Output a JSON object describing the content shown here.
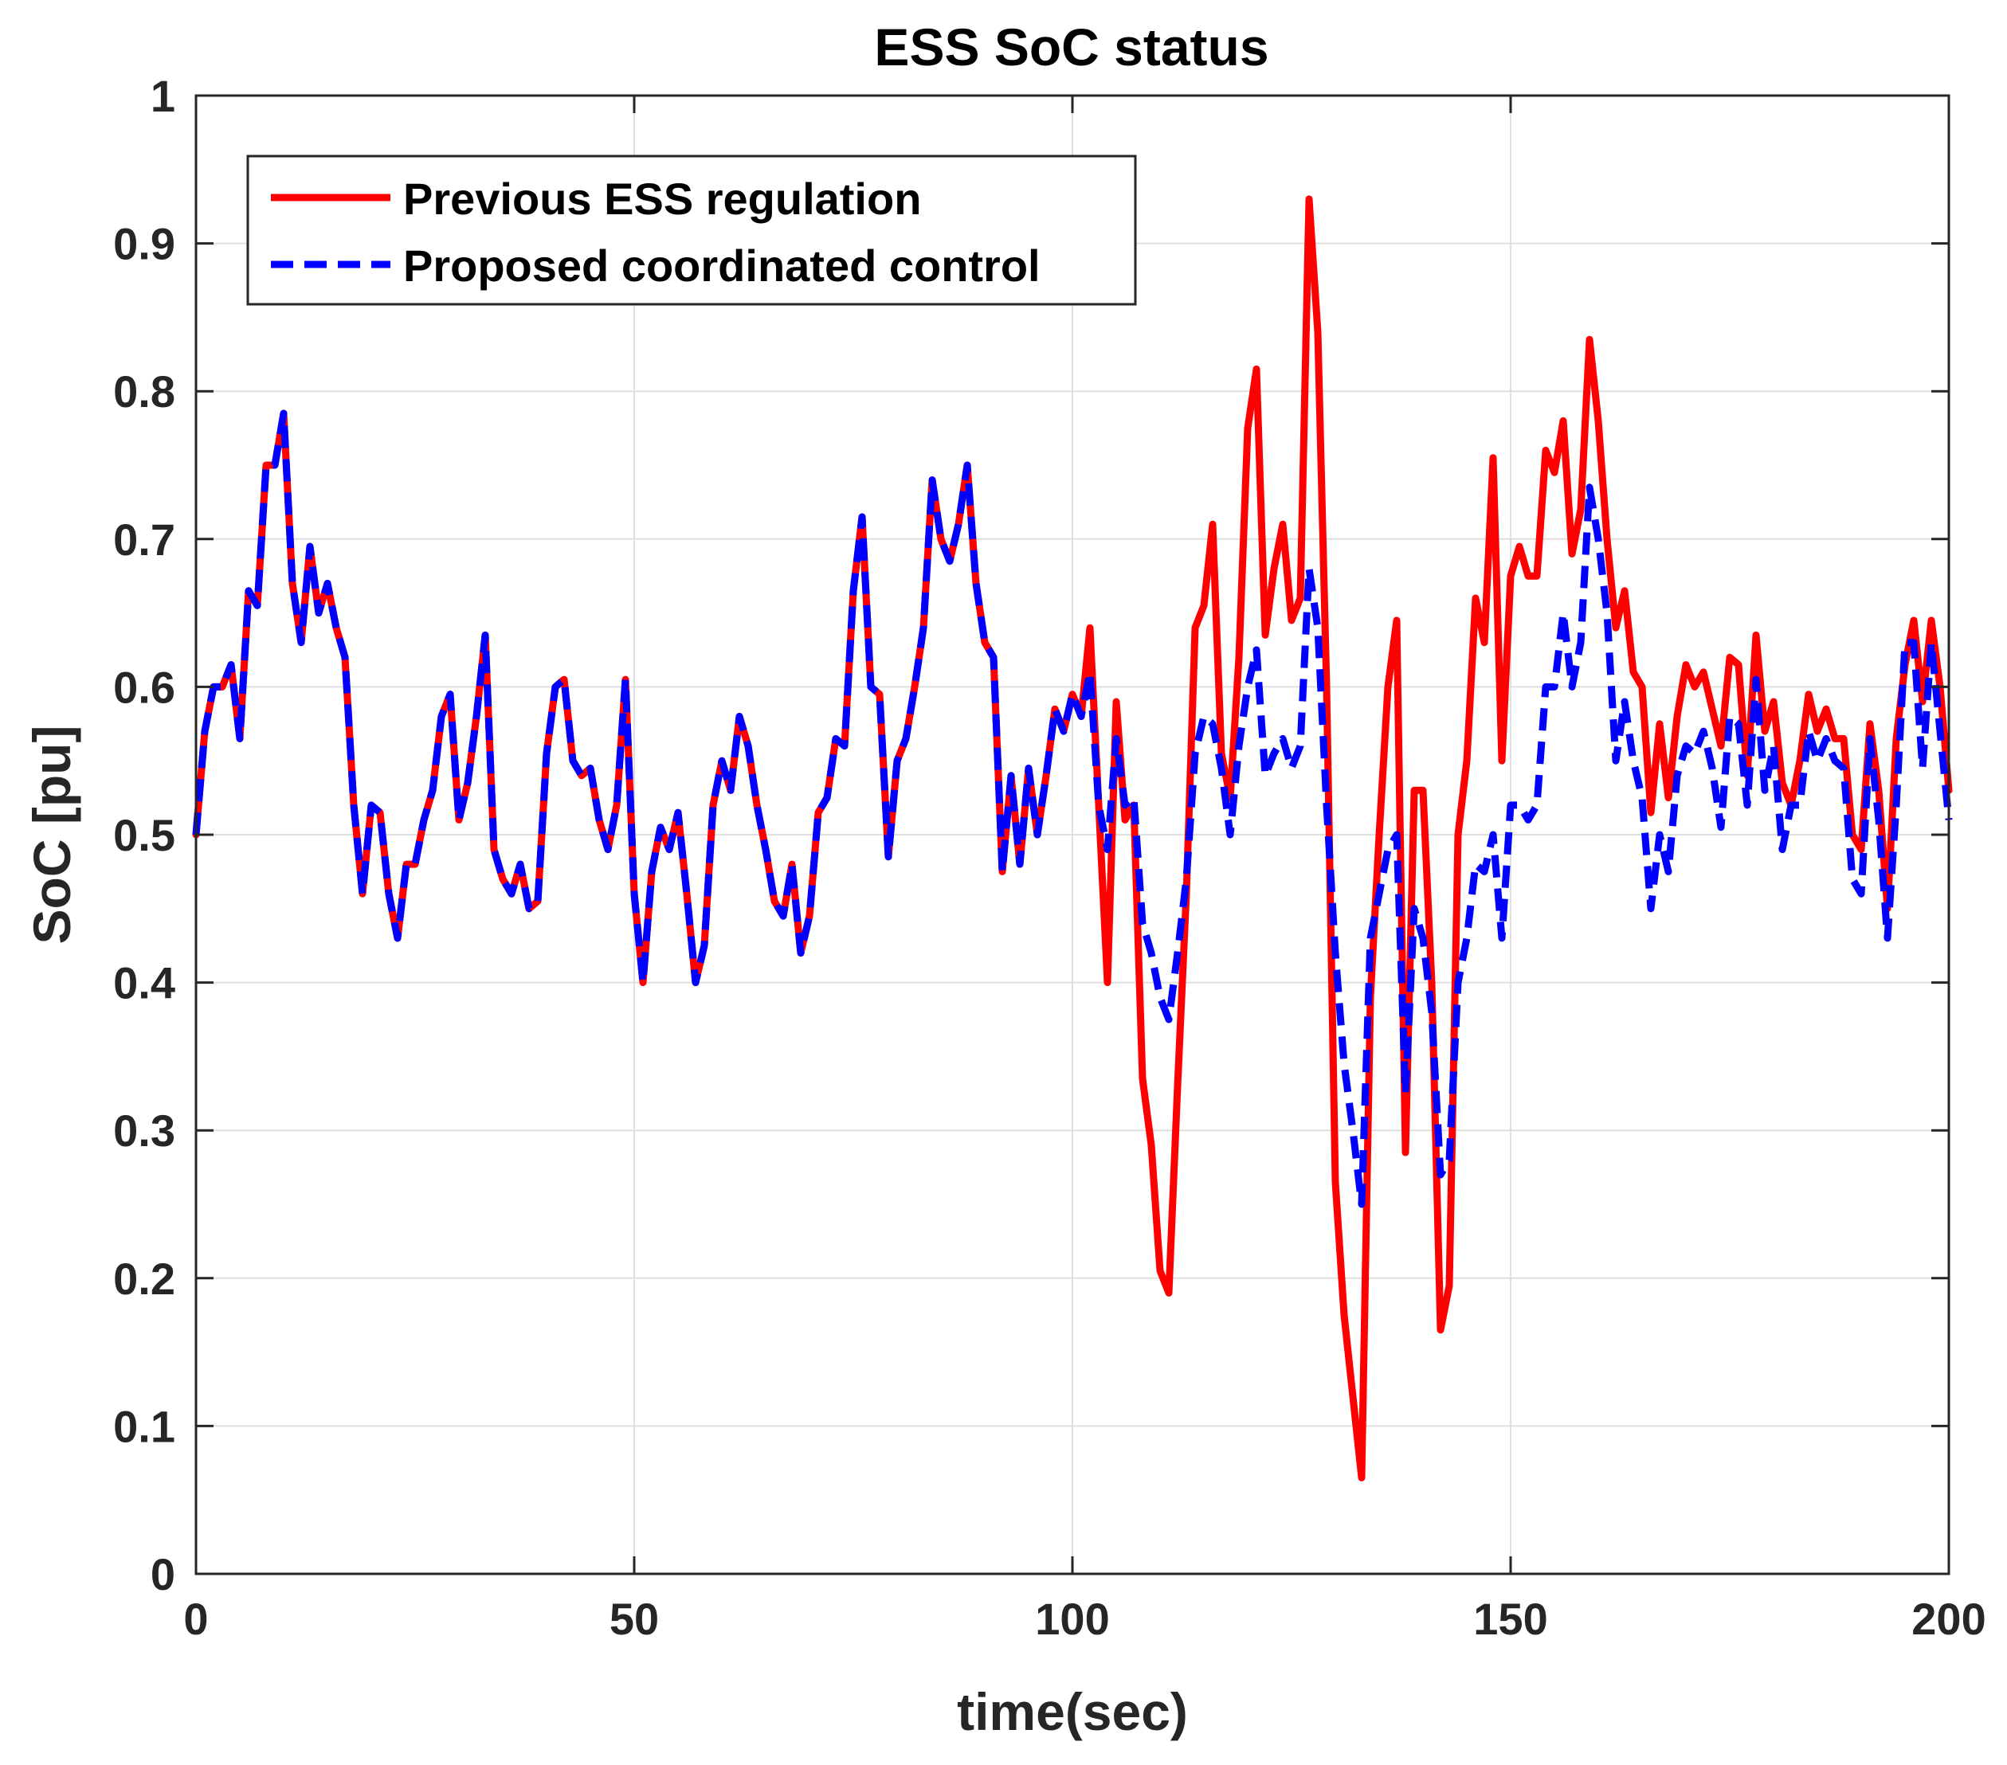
{
  "chart_data": {
    "type": "line",
    "title": "ESS SoC status",
    "xlabel": "time(sec)",
    "ylabel": "SoC [pu]",
    "xlim": [
      0,
      200
    ],
    "ylim": [
      0,
      1
    ],
    "grid": true,
    "legend_position": "top-left",
    "x_ticks": [
      0,
      50,
      100,
      150,
      200
    ],
    "x_tick_labels": [
      "0",
      "50",
      "100",
      "150",
      "200"
    ],
    "y_ticks": [
      0,
      0.1,
      0.2,
      0.3,
      0.4,
      0.5,
      0.6,
      0.7,
      0.8,
      0.9,
      1
    ],
    "y_tick_labels": [
      "0",
      "0.1",
      "0.2",
      "0.3",
      "0.4",
      "0.5",
      "0.6",
      "0.7",
      "0.8",
      "0.9",
      "1"
    ],
    "series": [
      {
        "name": "Previous ESS regulation",
        "color": "#ff0000",
        "style": "solid",
        "x": [
          0,
          1,
          2,
          3,
          4,
          5,
          6,
          7,
          8,
          9,
          10,
          11,
          12,
          13,
          14,
          15,
          16,
          17,
          18,
          19,
          20,
          21,
          22,
          23,
          24,
          25,
          26,
          27,
          28,
          29,
          30,
          31,
          32,
          33,
          34,
          35,
          36,
          37,
          38,
          39,
          40,
          41,
          42,
          43,
          44,
          45,
          46,
          47,
          48,
          49,
          50,
          51,
          52,
          53,
          54,
          55,
          56,
          57,
          58,
          59,
          60,
          61,
          62,
          63,
          64,
          65,
          66,
          67,
          68,
          69,
          70,
          71,
          72,
          73,
          74,
          75,
          76,
          77,
          78,
          79,
          80,
          81,
          82,
          83,
          84,
          85,
          86,
          87,
          88,
          89,
          90,
          91,
          92,
          93,
          94,
          95,
          96,
          97,
          98,
          99,
          100,
          101,
          102,
          103,
          104,
          105,
          106,
          107,
          108,
          109,
          110,
          111,
          112,
          113,
          114,
          115,
          116,
          117,
          118,
          119,
          120,
          121,
          122,
          123,
          124,
          125,
          126,
          127,
          128,
          129,
          130,
          131,
          132,
          133,
          134,
          135,
          136,
          137,
          138,
          139,
          140,
          141,
          142,
          143,
          144,
          145,
          146,
          147,
          148,
          149,
          150,
          151,
          152,
          153,
          154,
          155,
          156,
          157,
          158,
          159,
          160,
          161,
          162,
          163,
          164,
          165,
          166,
          167,
          168,
          169,
          170,
          171,
          172,
          173,
          174,
          175,
          176,
          177,
          178,
          179,
          180,
          181,
          182,
          183,
          184,
          185,
          186,
          187,
          188,
          189,
          190,
          191,
          192,
          193,
          194,
          195,
          196,
          197,
          198,
          199,
          200
        ],
        "y": [
          0.5,
          0.57,
          0.6,
          0.6,
          0.615,
          0.565,
          0.665,
          0.655,
          0.75,
          0.75,
          0.785,
          0.67,
          0.63,
          0.695,
          0.65,
          0.67,
          0.64,
          0.62,
          0.52,
          0.46,
          0.52,
          0.515,
          0.46,
          0.43,
          0.48,
          0.48,
          0.51,
          0.53,
          0.58,
          0.595,
          0.51,
          0.535,
          0.58,
          0.635,
          0.49,
          0.47,
          0.46,
          0.48,
          0.45,
          0.455,
          0.555,
          0.6,
          0.605,
          0.55,
          0.54,
          0.545,
          0.51,
          0.49,
          0.52,
          0.605,
          0.46,
          0.4,
          0.475,
          0.505,
          0.49,
          0.515,
          0.46,
          0.4,
          0.425,
          0.52,
          0.55,
          0.53,
          0.58,
          0.56,
          0.52,
          0.49,
          0.455,
          0.445,
          0.48,
          0.42,
          0.445,
          0.515,
          0.525,
          0.565,
          0.56,
          0.665,
          0.715,
          0.6,
          0.595,
          0.485,
          0.55,
          0.565,
          0.6,
          0.64,
          0.74,
          0.7,
          0.685,
          0.71,
          0.75,
          0.67,
          0.63,
          0.62,
          0.475,
          0.54,
          0.48,
          0.545,
          0.5,
          0.54,
          0.585,
          0.57,
          0.595,
          0.58,
          0.64,
          0.52,
          0.4,
          0.59,
          0.51,
          0.52,
          0.335,
          0.29,
          0.205,
          0.19,
          0.33,
          0.46,
          0.64,
          0.655,
          0.71,
          0.555,
          0.525,
          0.62,
          0.775,
          0.815,
          0.635,
          0.68,
          0.71,
          0.645,
          0.66,
          0.93,
          0.84,
          0.6,
          0.265,
          0.175,
          0.12,
          0.065,
          0.39,
          0.5,
          0.6,
          0.645,
          0.285,
          0.53,
          0.53,
          0.4,
          0.165,
          0.195,
          0.5,
          0.55,
          0.66,
          0.63,
          0.755,
          0.55,
          0.675,
          0.695,
          0.675,
          0.675,
          0.76,
          0.745,
          0.78,
          0.69,
          0.72,
          0.835,
          0.78,
          0.7,
          0.64,
          0.665,
          0.61,
          0.6,
          0.515,
          0.575,
          0.525,
          0.58,
          0.615,
          0.6,
          0.61,
          0.585,
          0.56,
          0.62,
          0.615,
          0.54,
          0.635,
          0.57,
          0.59,
          0.535,
          0.52,
          0.55,
          0.595,
          0.57,
          0.585,
          0.565,
          0.565,
          0.5,
          0.49,
          0.575,
          0.53,
          0.45,
          0.565,
          0.615,
          0.645,
          0.59,
          0.645,
          0.6,
          0.53
        ]
      },
      {
        "name": "Proposed coordinated control",
        "color": "#0000ff",
        "style": "dashed",
        "x": [
          0,
          1,
          2,
          3,
          4,
          5,
          6,
          7,
          8,
          9,
          10,
          11,
          12,
          13,
          14,
          15,
          16,
          17,
          18,
          19,
          20,
          21,
          22,
          23,
          24,
          25,
          26,
          27,
          28,
          29,
          30,
          31,
          32,
          33,
          34,
          35,
          36,
          37,
          38,
          39,
          40,
          41,
          42,
          43,
          44,
          45,
          46,
          47,
          48,
          49,
          50,
          51,
          52,
          53,
          54,
          55,
          56,
          57,
          58,
          59,
          60,
          61,
          62,
          63,
          64,
          65,
          66,
          67,
          68,
          69,
          70,
          71,
          72,
          73,
          74,
          75,
          76,
          77,
          78,
          79,
          80,
          81,
          82,
          83,
          84,
          85,
          86,
          87,
          88,
          89,
          90,
          91,
          92,
          93,
          94,
          95,
          96,
          97,
          98,
          99,
          100,
          101,
          102,
          103,
          104,
          105,
          106,
          107,
          108,
          109,
          110,
          111,
          112,
          113,
          114,
          115,
          116,
          117,
          118,
          119,
          120,
          121,
          122,
          123,
          124,
          125,
          126,
          127,
          128,
          129,
          130,
          131,
          132,
          133,
          134,
          135,
          136,
          137,
          138,
          139,
          140,
          141,
          142,
          143,
          144,
          145,
          146,
          147,
          148,
          149,
          150,
          151,
          152,
          153,
          154,
          155,
          156,
          157,
          158,
          159,
          160,
          161,
          162,
          163,
          164,
          165,
          166,
          167,
          168,
          169,
          170,
          171,
          172,
          173,
          174,
          175,
          176,
          177,
          178,
          179,
          180,
          181,
          182,
          183,
          184,
          185,
          186,
          187,
          188,
          189,
          190,
          191,
          192,
          193,
          194,
          195,
          196,
          197,
          198,
          199,
          200
        ],
        "y": [
          0.5,
          0.57,
          0.6,
          0.6,
          0.615,
          0.565,
          0.665,
          0.655,
          0.75,
          0.75,
          0.785,
          0.67,
          0.63,
          0.695,
          0.65,
          0.67,
          0.64,
          0.62,
          0.52,
          0.46,
          0.52,
          0.515,
          0.46,
          0.43,
          0.48,
          0.48,
          0.51,
          0.53,
          0.58,
          0.595,
          0.51,
          0.535,
          0.58,
          0.635,
          0.49,
          0.47,
          0.46,
          0.48,
          0.45,
          0.455,
          0.555,
          0.6,
          0.605,
          0.55,
          0.54,
          0.545,
          0.51,
          0.49,
          0.52,
          0.605,
          0.46,
          0.4,
          0.475,
          0.505,
          0.49,
          0.515,
          0.46,
          0.4,
          0.425,
          0.52,
          0.55,
          0.53,
          0.58,
          0.56,
          0.52,
          0.49,
          0.455,
          0.445,
          0.48,
          0.42,
          0.445,
          0.515,
          0.525,
          0.565,
          0.56,
          0.665,
          0.715,
          0.6,
          0.595,
          0.485,
          0.55,
          0.565,
          0.6,
          0.64,
          0.74,
          0.7,
          0.685,
          0.71,
          0.75,
          0.67,
          0.63,
          0.62,
          0.475,
          0.54,
          0.48,
          0.545,
          0.5,
          0.54,
          0.585,
          0.57,
          0.595,
          0.58,
          0.61,
          0.52,
          0.49,
          0.565,
          0.52,
          0.525,
          0.44,
          0.42,
          0.39,
          0.375,
          0.42,
          0.47,
          0.555,
          0.58,
          0.575,
          0.545,
          0.5,
          0.56,
          0.6,
          0.625,
          0.54,
          0.555,
          0.565,
          0.545,
          0.56,
          0.68,
          0.64,
          0.52,
          0.42,
          0.345,
          0.3,
          0.25,
          0.43,
          0.46,
          0.49,
          0.5,
          0.325,
          0.45,
          0.43,
          0.38,
          0.27,
          0.28,
          0.4,
          0.43,
          0.48,
          0.475,
          0.5,
          0.43,
          0.52,
          0.52,
          0.51,
          0.52,
          0.6,
          0.6,
          0.65,
          0.6,
          0.63,
          0.735,
          0.7,
          0.65,
          0.55,
          0.59,
          0.55,
          0.525,
          0.45,
          0.5,
          0.475,
          0.54,
          0.56,
          0.555,
          0.57,
          0.545,
          0.505,
          0.58,
          0.575,
          0.52,
          0.605,
          0.53,
          0.56,
          0.49,
          0.52,
          0.52,
          0.57,
          0.55,
          0.565,
          0.55,
          0.545,
          0.47,
          0.46,
          0.565,
          0.51,
          0.43,
          0.52,
          0.63,
          0.63,
          0.545,
          0.63,
          0.57,
          0.51
        ]
      }
    ]
  }
}
